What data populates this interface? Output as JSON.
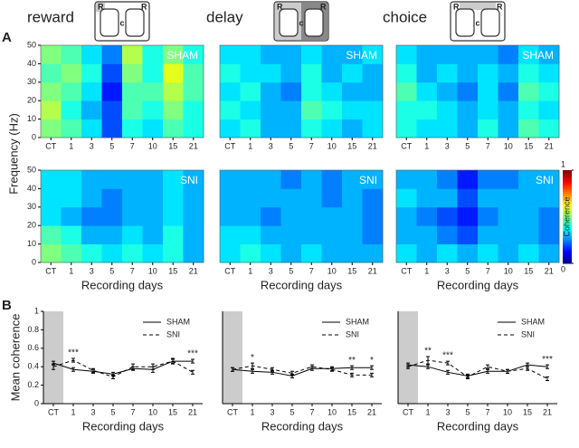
{
  "panel_labels": [
    "A",
    "B"
  ],
  "conditions": [
    "reward",
    "delay",
    "choice"
  ],
  "maze_letters": [
    "R",
    "c",
    "R"
  ],
  "heatmap_ylabel": "Frequency (Hz)",
  "colorbar": {
    "label": "Coherence",
    "lim": [
      0,
      1
    ],
    "ticks": [
      0,
      1
    ]
  },
  "chart_data": [
    {
      "type": "heatmap",
      "label": "SHAM",
      "xlabel": "Recording days",
      "categories": [
        "CT",
        "1",
        "3",
        "5",
        "7",
        "10",
        "15",
        "21"
      ],
      "ylim": [
        0,
        50
      ],
      "yticks": [
        0,
        10,
        20,
        30,
        40,
        50
      ],
      "ybins": [
        0,
        10,
        20,
        30,
        40,
        50
      ],
      "z": [
        [
          0.5,
          0.45,
          0.35,
          0.2,
          0.4,
          0.35,
          0.45,
          0.4
        ],
        [
          0.55,
          0.4,
          0.3,
          0.2,
          0.45,
          0.4,
          0.5,
          0.4
        ],
        [
          0.5,
          0.45,
          0.35,
          0.15,
          0.45,
          0.45,
          0.55,
          0.45
        ],
        [
          0.45,
          0.5,
          0.4,
          0.2,
          0.5,
          0.4,
          0.6,
          0.45
        ],
        [
          0.5,
          0.45,
          0.35,
          0.25,
          0.55,
          0.4,
          0.5,
          0.4
        ]
      ]
    },
    {
      "type": "heatmap",
      "label": "SHAM",
      "xlabel": "Recording days",
      "categories": [
        "CT",
        "1",
        "3",
        "5",
        "7",
        "10",
        "15",
        "21"
      ],
      "ylim": [
        0,
        50
      ],
      "ybins": [
        0,
        10,
        20,
        30,
        40,
        50
      ],
      "z": [
        [
          0.35,
          0.4,
          0.3,
          0.3,
          0.4,
          0.35,
          0.3,
          0.35
        ],
        [
          0.4,
          0.35,
          0.3,
          0.3,
          0.45,
          0.4,
          0.35,
          0.35
        ],
        [
          0.35,
          0.4,
          0.3,
          0.25,
          0.4,
          0.35,
          0.3,
          0.3
        ],
        [
          0.4,
          0.35,
          0.35,
          0.3,
          0.4,
          0.3,
          0.35,
          0.3
        ],
        [
          0.35,
          0.35,
          0.3,
          0.3,
          0.35,
          0.3,
          0.3,
          0.35
        ]
      ]
    },
    {
      "type": "heatmap",
      "label": "SHAM",
      "xlabel": "Recording days",
      "categories": [
        "CT",
        "1",
        "3",
        "5",
        "7",
        "10",
        "15",
        "21"
      ],
      "ylim": [
        0,
        50
      ],
      "ybins": [
        0,
        10,
        20,
        30,
        40,
        50
      ],
      "z": [
        [
          0.4,
          0.35,
          0.35,
          0.3,
          0.4,
          0.3,
          0.45,
          0.4
        ],
        [
          0.4,
          0.4,
          0.35,
          0.3,
          0.35,
          0.3,
          0.4,
          0.35
        ],
        [
          0.45,
          0.35,
          0.3,
          0.25,
          0.35,
          0.25,
          0.45,
          0.4
        ],
        [
          0.4,
          0.3,
          0.35,
          0.3,
          0.35,
          0.3,
          0.4,
          0.35
        ],
        [
          0.35,
          0.3,
          0.3,
          0.3,
          0.3,
          0.25,
          0.35,
          0.3
        ]
      ]
    },
    {
      "type": "heatmap",
      "label": "SNI",
      "xlabel": "Recording days",
      "categories": [
        "CT",
        "1",
        "3",
        "5",
        "7",
        "10",
        "15",
        "21"
      ],
      "ylim": [
        0,
        50
      ],
      "yticks": [
        0,
        10,
        20,
        30,
        40,
        50
      ],
      "ybins": [
        0,
        10,
        20,
        30,
        40,
        50
      ],
      "z": [
        [
          0.5,
          0.45,
          0.4,
          0.35,
          0.4,
          0.35,
          0.4,
          0.3
        ],
        [
          0.45,
          0.4,
          0.3,
          0.3,
          0.35,
          0.3,
          0.4,
          0.3
        ],
        [
          0.35,
          0.3,
          0.25,
          0.25,
          0.3,
          0.3,
          0.35,
          0.3
        ],
        [
          0.35,
          0.35,
          0.3,
          0.25,
          0.3,
          0.3,
          0.35,
          0.3
        ],
        [
          0.35,
          0.35,
          0.3,
          0.3,
          0.3,
          0.3,
          0.35,
          0.3
        ]
      ]
    },
    {
      "type": "heatmap",
      "label": "SNI",
      "xlabel": "Recording days",
      "categories": [
        "CT",
        "1",
        "3",
        "5",
        "7",
        "10",
        "15",
        "21"
      ],
      "ylim": [
        0,
        50
      ],
      "ybins": [
        0,
        10,
        20,
        30,
        40,
        50
      ],
      "z": [
        [
          0.35,
          0.4,
          0.35,
          0.3,
          0.35,
          0.3,
          0.3,
          0.3
        ],
        [
          0.35,
          0.35,
          0.3,
          0.3,
          0.3,
          0.3,
          0.3,
          0.25
        ],
        [
          0.3,
          0.3,
          0.25,
          0.3,
          0.3,
          0.3,
          0.3,
          0.25
        ],
        [
          0.3,
          0.3,
          0.3,
          0.3,
          0.3,
          0.25,
          0.3,
          0.25
        ],
        [
          0.3,
          0.3,
          0.3,
          0.25,
          0.3,
          0.25,
          0.3,
          0.3
        ]
      ]
    },
    {
      "type": "heatmap",
      "label": "SNI",
      "xlabel": "Recording days",
      "categories": [
        "CT",
        "1",
        "3",
        "5",
        "7",
        "10",
        "15",
        "21"
      ],
      "ylim": [
        0,
        50
      ],
      "ybins": [
        0,
        10,
        20,
        30,
        40,
        50
      ],
      "z": [
        [
          0.35,
          0.3,
          0.35,
          0.3,
          0.35,
          0.3,
          0.35,
          0.3
        ],
        [
          0.3,
          0.3,
          0.25,
          0.2,
          0.3,
          0.3,
          0.3,
          0.25
        ],
        [
          0.3,
          0.25,
          0.2,
          0.15,
          0.25,
          0.3,
          0.3,
          0.25
        ],
        [
          0.35,
          0.3,
          0.3,
          0.2,
          0.3,
          0.3,
          0.3,
          0.3
        ],
        [
          0.3,
          0.3,
          0.25,
          0.15,
          0.25,
          0.25,
          0.3,
          0.3
        ]
      ]
    },
    {
      "type": "line",
      "ylabel": "Mean coherence",
      "xlabel": "Recording days",
      "categories": [
        "CT",
        "1",
        "3",
        "5",
        "7",
        "10",
        "15",
        "21"
      ],
      "ylim": [
        0,
        1
      ],
      "yticks": [
        0,
        0.2,
        0.4,
        0.6,
        0.8,
        1
      ],
      "series": [
        {
          "name": "SHAM",
          "color": "#000000",
          "dash": "solid",
          "values": [
            0.44,
            0.37,
            0.35,
            0.32,
            0.38,
            0.37,
            0.46,
            0.46
          ],
          "errors": [
            0.02,
            0.02,
            0.02,
            0.02,
            0.02,
            0.03,
            0.03,
            0.02
          ]
        },
        {
          "name": "SNI",
          "color": "#000000",
          "dash": "dashed",
          "values": [
            0.4,
            0.47,
            0.36,
            0.29,
            0.4,
            0.4,
            0.46,
            0.34
          ],
          "errors": [
            0.03,
            0.02,
            0.02,
            0.02,
            0.03,
            0.03,
            0.02,
            0.02
          ]
        }
      ],
      "significance": [
        null,
        "***",
        null,
        null,
        null,
        null,
        null,
        "***"
      ]
    },
    {
      "type": "line",
      "xlabel": "Recording days",
      "categories": [
        "CT",
        "1",
        "3",
        "5",
        "7",
        "10",
        "15",
        "21"
      ],
      "ylim": [
        0,
        1
      ],
      "series": [
        {
          "name": "SHAM",
          "color": "#000000",
          "dash": "solid",
          "values": [
            0.37,
            0.35,
            0.34,
            0.3,
            0.38,
            0.38,
            0.39,
            0.39
          ],
          "errors": [
            0.02,
            0.02,
            0.02,
            0.02,
            0.02,
            0.02,
            0.02,
            0.02
          ]
        },
        {
          "name": "SNI",
          "color": "#000000",
          "dash": "dashed",
          "values": [
            0.37,
            0.41,
            0.37,
            0.33,
            0.4,
            0.37,
            0.31,
            0.31
          ],
          "errors": [
            0.02,
            0.03,
            0.02,
            0.02,
            0.02,
            0.02,
            0.02,
            0.02
          ]
        }
      ],
      "significance": [
        null,
        "*",
        null,
        null,
        null,
        null,
        "**",
        "*"
      ]
    },
    {
      "type": "line",
      "xlabel": "Recording days",
      "categories": [
        "CT",
        "1",
        "3",
        "5",
        "7",
        "10",
        "15",
        "21"
      ],
      "ylim": [
        0,
        1
      ],
      "series": [
        {
          "name": "SHAM",
          "color": "#000000",
          "dash": "solid",
          "values": [
            0.42,
            0.4,
            0.34,
            0.3,
            0.35,
            0.35,
            0.42,
            0.4
          ],
          "errors": [
            0.02,
            0.02,
            0.02,
            0.02,
            0.02,
            0.02,
            0.02,
            0.02
          ]
        },
        {
          "name": "SNI",
          "color": "#000000",
          "dash": "dashed",
          "values": [
            0.4,
            0.47,
            0.44,
            0.29,
            0.4,
            0.35,
            0.38,
            0.27
          ],
          "errors": [
            0.02,
            0.04,
            0.02,
            0.02,
            0.02,
            0.02,
            0.02,
            0.02
          ]
        }
      ],
      "significance": [
        null,
        "**",
        "***",
        null,
        null,
        null,
        null,
        "***"
      ]
    }
  ]
}
